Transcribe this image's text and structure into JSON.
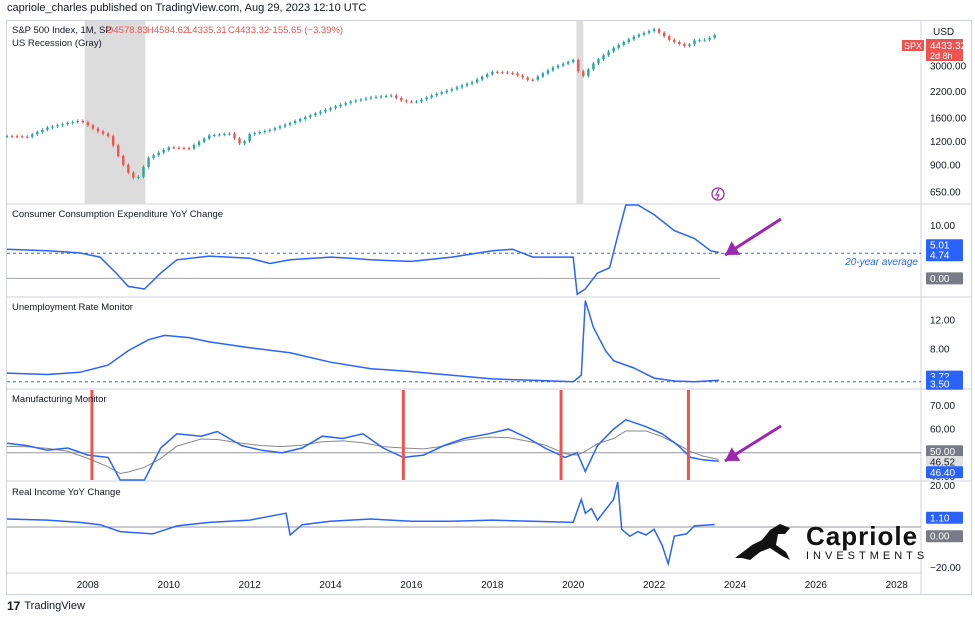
{
  "header": {
    "published": "capriole_charles published on TradingView.com, Aug 29, 2023 12:10 UTC"
  },
  "footer": {
    "brand": "TradingView"
  },
  "logo": {
    "name": "Capriole",
    "tagline": "INVESTMENTS"
  },
  "colors": {
    "series": "#2962ff",
    "up": "#26a69a",
    "down": "#ef5350",
    "arrow": "#9c27b0",
    "recession": "#dcdcdc",
    "signal": "#ef5350"
  },
  "chart_data": [
    {
      "type": "candlestick",
      "title": "S&P 500 Index, 1M, SP",
      "ohlc_text": {
        "o": "O4578.83",
        "h": "H4584.62",
        "l": "L4335.31",
        "c": "C4433.32",
        "chg": "−155.65 (−3.39%)"
      },
      "subtitle": "US Recession (Gray)",
      "currency": "USD",
      "price_label": {
        "symbol": "SPX",
        "value": "4433.32",
        "countdown": "2d 8h"
      },
      "scale": "log",
      "y_ticks": [
        650,
        900,
        1200,
        1600,
        2200,
        3000
      ],
      "y_tick_labels": [
        "650.00",
        "900.00",
        "1200.00",
        "1600.00",
        "2200.00",
        "3000.00"
      ],
      "recessions": [
        [
          2007.92,
          2009.42
        ],
        [
          2020.08,
          2020.25
        ]
      ],
      "x": [
        2006.0,
        2006.5,
        2007.0,
        2007.5,
        2007.8,
        2008.2,
        2008.5,
        2008.8,
        2009.0,
        2009.2,
        2009.5,
        2010.0,
        2010.5,
        2011.0,
        2011.5,
        2011.8,
        2012.0,
        2012.5,
        2013.0,
        2013.5,
        2014.0,
        2014.5,
        2015.0,
        2015.5,
        2015.8,
        2016.1,
        2016.5,
        2017.0,
        2017.5,
        2018.0,
        2018.5,
        2018.95,
        2019.5,
        2020.0,
        2020.2,
        2020.5,
        2021.0,
        2021.5,
        2022.0,
        2022.4,
        2022.8,
        2023.0,
        2023.3,
        2023.6
      ],
      "close": [
        1280,
        1270,
        1420,
        1500,
        1550,
        1370,
        1280,
        950,
        820,
        740,
        980,
        1115,
        1100,
        1290,
        1320,
        1140,
        1310,
        1380,
        1500,
        1650,
        1800,
        1950,
        2050,
        2100,
        1950,
        1940,
        2100,
        2270,
        2470,
        2800,
        2750,
        2500,
        2950,
        3230,
        2580,
        3100,
        3750,
        4300,
        4700,
        4100,
        3800,
        4100,
        4150,
        4500
      ]
    },
    {
      "type": "line",
      "title": "Consumer Consumption Expenditure YoY Change",
      "y_ticks": [
        0,
        5,
        10
      ],
      "y_tick_labels": [
        "0.00",
        "5.00",
        "10.00"
      ],
      "badges": [
        "5.01",
        "4.74",
        "0.00"
      ],
      "average_label": "20-year average",
      "average_value": 4.74,
      "x": [
        2006.0,
        2007.0,
        2007.8,
        2008.3,
        2008.7,
        2009.0,
        2009.4,
        2009.8,
        2010.2,
        2011.0,
        2012.0,
        2012.5,
        2013.0,
        2014.0,
        2014.5,
        2015.0,
        2016.0,
        2017.0,
        2018.0,
        2018.5,
        2019.0,
        2019.5,
        2020.0,
        2020.1,
        2020.3,
        2020.6,
        2020.9,
        2021.1,
        2021.3,
        2021.6,
        2022.0,
        2022.5,
        2023.0,
        2023.4,
        2023.6
      ],
      "y": [
        5.5,
        5.2,
        4.8,
        4.0,
        1.0,
        -1.5,
        -2.0,
        1.0,
        3.5,
        4.2,
        3.8,
        2.8,
        3.5,
        4.0,
        3.8,
        3.5,
        3.2,
        4.0,
        5.2,
        5.5,
        4.0,
        4.0,
        4.0,
        -3.0,
        -2.0,
        1.0,
        2.0,
        8.0,
        19.0,
        14.0,
        12.0,
        9.0,
        7.5,
        5.2,
        4.9
      ]
    },
    {
      "type": "line",
      "title": "Unemployment Rate Monitor",
      "y_ticks": [
        8,
        12
      ],
      "y_tick_labels": [
        "8.00",
        "12.00"
      ],
      "badges": [
        "3.72",
        "3.50"
      ],
      "baseline_value": 3.5,
      "x": [
        2006.0,
        2007.0,
        2007.8,
        2008.5,
        2009.0,
        2009.5,
        2009.9,
        2010.5,
        2011.0,
        2012.0,
        2013.0,
        2014.0,
        2015.0,
        2016.0,
        2017.0,
        2018.0,
        2019.0,
        2020.0,
        2020.2,
        2020.3,
        2020.5,
        2020.8,
        2021.0,
        2021.5,
        2022.0,
        2022.5,
        2023.0,
        2023.6
      ],
      "y": [
        4.7,
        4.5,
        4.8,
        5.8,
        7.8,
        9.3,
        9.9,
        9.6,
        9.0,
        8.2,
        7.5,
        6.2,
        5.3,
        4.9,
        4.4,
        3.9,
        3.7,
        3.5,
        4.4,
        14.7,
        11.0,
        7.8,
        6.4,
        5.4,
        4.0,
        3.6,
        3.5,
        3.7
      ]
    },
    {
      "type": "line",
      "title": "Manufacturing Monitor",
      "y_ticks": [
        40,
        50,
        60,
        70
      ],
      "y_tick_labels": [
        "40.00",
        "50.00",
        "60.00",
        "70.00"
      ],
      "badges": [
        "50.00",
        "46.52",
        "46.40"
      ],
      "threshold": 50,
      "signals": [
        2008.1,
        2015.8,
        2019.7,
        2022.85
      ],
      "x": [
        2006.0,
        2006.5,
        2007.0,
        2007.5,
        2008.0,
        2008.5,
        2008.8,
        2009.0,
        2009.4,
        2009.8,
        2010.2,
        2010.8,
        2011.2,
        2011.8,
        2012.3,
        2012.8,
        2013.3,
        2013.8,
        2014.3,
        2014.8,
        2015.3,
        2015.8,
        2016.3,
        2016.8,
        2017.3,
        2017.9,
        2018.4,
        2018.9,
        2019.3,
        2019.8,
        2020.1,
        2020.3,
        2020.6,
        2021.0,
        2021.3,
        2021.8,
        2022.2,
        2022.6,
        2022.9,
        2023.2,
        2023.6
      ],
      "y": [
        54,
        53,
        51,
        52,
        49,
        48,
        38,
        33,
        38,
        52,
        58,
        57,
        59,
        53,
        51,
        50,
        52,
        57,
        56,
        58,
        52,
        48,
        49,
        53,
        56,
        58,
        60,
        56,
        52,
        48,
        50,
        42,
        53,
        60,
        64,
        61,
        58,
        53,
        48,
        47,
        46.4
      ]
    },
    {
      "type": "line",
      "title": "Real Income YoY Change",
      "y_ticks": [
        -20,
        0,
        20
      ],
      "y_tick_labels": [
        "−20.00",
        "0.00",
        "20.00"
      ],
      "badges": [
        "1.10",
        "0.00"
      ],
      "x": [
        2006.0,
        2007.0,
        2007.8,
        2008.3,
        2008.8,
        2009.2,
        2009.6,
        2010.2,
        2011.0,
        2012.0,
        2012.9,
        2013.0,
        2013.3,
        2014.0,
        2015.0,
        2016.0,
        2017.0,
        2018.0,
        2019.0,
        2020.0,
        2020.2,
        2020.3,
        2020.45,
        2020.6,
        2021.0,
        2021.1,
        2021.2,
        2021.4,
        2021.6,
        2021.8,
        2022.0,
        2022.2,
        2022.35,
        2022.5,
        2022.8,
        2023.0,
        2023.5
      ],
      "y": [
        3.5,
        3.0,
        2.0,
        1.0,
        -2.0,
        -2.5,
        -3.0,
        0.5,
        2.0,
        3.0,
        6.0,
        -3.5,
        1.0,
        2.5,
        3.5,
        2.5,
        2.5,
        3.0,
        2.5,
        2.0,
        12.0,
        6.0,
        8.0,
        3.0,
        12.0,
        22.0,
        -1.0,
        -4.0,
        -2.0,
        -3.5,
        -1.0,
        -8.0,
        -16.0,
        -4.0,
        -3.0,
        0.5,
        1.1
      ]
    }
  ],
  "x_axis": {
    "ticks": [
      2008,
      2010,
      2012,
      2014,
      2016,
      2018,
      2020,
      2022,
      2024,
      2026,
      2028
    ],
    "labels": [
      "2008",
      "2010",
      "2012",
      "2014",
      "2016",
      "2018",
      "2020",
      "2022",
      "2024",
      "2026",
      "2028"
    ],
    "range": [
      2006.0,
      2028.6
    ]
  }
}
